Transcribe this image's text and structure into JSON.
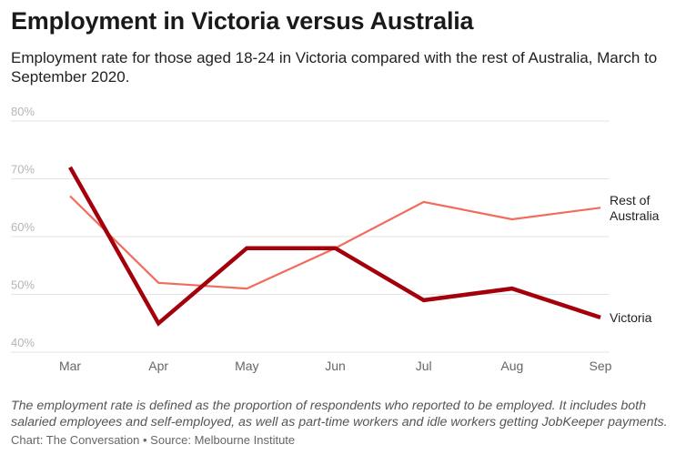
{
  "title": "Employment in Victoria versus Australia",
  "subtitle": "Employment rate for those aged 18-24 in Victoria compared with the rest of Australia, March to September 2020.",
  "note": "The employment rate is defined as the proportion of respondents who reported to be employed. It includes both salaried employees and self-employed, as well as part-time workers and idle workers getting JobKeeper payments.",
  "credit": "Chart: The Conversation • Source: Melbourne Institute",
  "chart_data": {
    "type": "line",
    "categories": [
      "Mar",
      "Apr",
      "May",
      "Jun",
      "Jul",
      "Aug",
      "Sep"
    ],
    "ylim": [
      40,
      80
    ],
    "yticks": [
      40,
      50,
      60,
      70,
      80
    ],
    "ytick_labels": [
      "40%",
      "50%",
      "60%",
      "70%",
      "80%"
    ],
    "grid": true,
    "series": [
      {
        "name": "Rest of Australia",
        "label_lines": [
          "Rest of",
          "Australia"
        ],
        "values": [
          67,
          52,
          51,
          58,
          66,
          63,
          65
        ],
        "color": "#f26b5b"
      },
      {
        "name": "Victoria",
        "label_lines": [
          "Victoria"
        ],
        "values": [
          72,
          45,
          58,
          58,
          49,
          51,
          46
        ],
        "color": "#a3000b"
      }
    ]
  }
}
